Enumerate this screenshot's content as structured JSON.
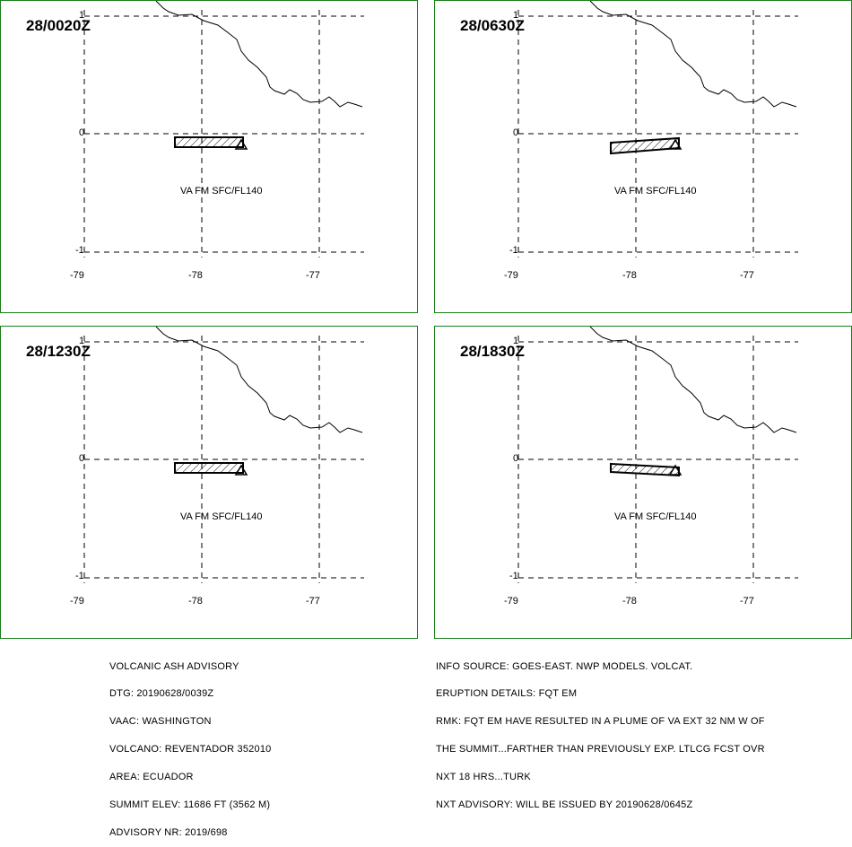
{
  "panels": [
    {
      "time": "28/0020Z",
      "plume": "a",
      "va_label": "VA FM SFC/FL140"
    },
    {
      "time": "28/0630Z",
      "plume": "b",
      "va_label": "VA FM SFC/FL140"
    },
    {
      "time": "28/1230Z",
      "plume": "a",
      "va_label": "VA FM SFC/FL140"
    },
    {
      "time": "28/1830Z",
      "plume": "c",
      "va_label": "VA FM SFC/FL140"
    }
  ],
  "axes": {
    "lat_ticks": [
      "1",
      "0",
      "-1"
    ],
    "lon_ticks": [
      "-79",
      "-78",
      "-77"
    ]
  },
  "left_text": [
    "VOLCANIC ASH ADVISORY",
    "DTG: 20190628/0039Z",
    "VAAC: WASHINGTON",
    "VOLCANO: REVENTADOR 352010",
    "AREA: ECUADOR",
    "SUMMIT ELEV: 11686 FT (3562 M)",
    "ADVISORY NR: 2019/698"
  ],
  "right_text": [
    "INFO SOURCE: GOES-EAST. NWP MODELS. VOLCAT.",
    "ERUPTION DETAILS: FQT EM",
    "RMK: FQT EM HAVE RESULTED IN A PLUME OF VA EXT 32 NM W OF",
    "THE SUMMIT...FARTHER THAN PREVIOUSLY EXP. LTLCG FCST OVR",
    "NXT 18 HRS...TURK",
    "NXT ADVISORY: WILL BE ISSUED BY 20190628/0645Z"
  ],
  "colors": {
    "frame": "#1a7f1a",
    "lines": "#000000"
  }
}
